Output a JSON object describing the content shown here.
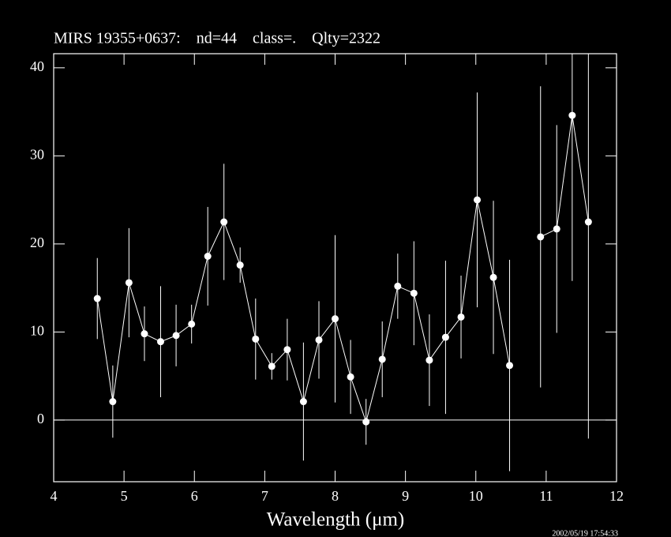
{
  "chart_data": {
    "type": "line",
    "title": "MIRS 19355+0637:    nd=44    class=.    Qlty=2322",
    "x_label": "Wavelength (μm)",
    "timestamp": "2002/05/19 17:54:33",
    "x": [
      4.62,
      4.84,
      5.07,
      5.29,
      5.52,
      5.74,
      5.96,
      6.19,
      6.42,
      6.65,
      6.87,
      7.1,
      7.32,
      7.55,
      7.77,
      8.0,
      8.22,
      8.44,
      8.67,
      8.89,
      9.12,
      9.34,
      9.57,
      9.79,
      10.02,
      10.25,
      10.48,
      null,
      10.92,
      11.15,
      11.37,
      11.6
    ],
    "series": [
      {
        "color": "#ffffff",
        "values": [
          13.8,
          2.1,
          15.6,
          9.8,
          8.9,
          9.6,
          10.9,
          18.6,
          22.5,
          17.6,
          9.2,
          6.1,
          8.0,
          2.1,
          9.1,
          11.5,
          4.9,
          -0.2,
          6.9,
          15.2,
          14.4,
          6.8,
          9.4,
          11.7,
          25.0,
          16.2,
          6.2,
          null,
          20.8,
          21.7,
          34.6,
          22.5
        ],
        "errors": [
          4.6,
          4.1,
          6.2,
          3.1,
          6.3,
          3.5,
          2.2,
          5.6,
          6.6,
          2.0,
          4.6,
          1.5,
          3.5,
          6.7,
          4.4,
          9.5,
          4.2,
          2.6,
          4.3,
          3.7,
          5.9,
          5.2,
          8.7,
          4.7,
          12.2,
          8.7,
          12.0,
          null,
          17.1,
          11.8,
          18.8,
          24.6
        ]
      }
    ],
    "xlim": [
      4,
      12
    ],
    "ylim": [
      -7,
      41.6
    ],
    "xticks": [
      4,
      5,
      6,
      7,
      8,
      9,
      10,
      11,
      12
    ],
    "yticks": [
      0,
      10,
      20,
      30,
      40
    ],
    "zero_line": 0
  }
}
